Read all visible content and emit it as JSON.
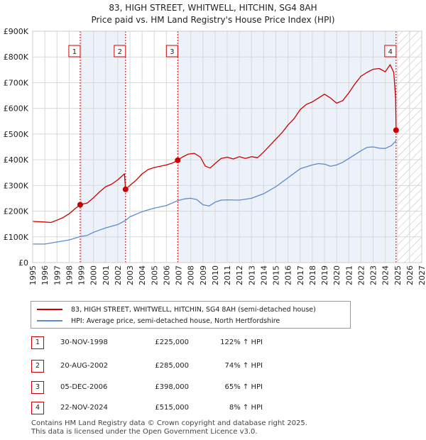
{
  "title_line1": "83, HIGH STREET, WHITWELL, HITCHIN, SG4 8AH",
  "title_line2": "Price paid vs. HM Land Registry's House Price Index (HPI)",
  "chart_data": {
    "type": "line",
    "title": "Price paid vs. HM Land Registry's House Price Index (HPI)",
    "xlabel": "",
    "ylabel": "",
    "xlim": [
      1995,
      2027
    ],
    "ylim": [
      0,
      900000
    ],
    "grid": true,
    "y_ticks": [
      {
        "value": 0,
        "label": "£0"
      },
      {
        "value": 100000,
        "label": "£100K"
      },
      {
        "value": 200000,
        "label": "£200K"
      },
      {
        "value": 300000,
        "label": "£300K"
      },
      {
        "value": 400000,
        "label": "£400K"
      },
      {
        "value": 500000,
        "label": "£500K"
      },
      {
        "value": 600000,
        "label": "£600K"
      },
      {
        "value": 700000,
        "label": "£700K"
      },
      {
        "value": 800000,
        "label": "£800K"
      },
      {
        "value": 900000,
        "label": "£900K"
      }
    ],
    "x_ticks": [
      "1995",
      "1996",
      "1997",
      "1998",
      "1999",
      "2000",
      "2001",
      "2002",
      "2003",
      "2004",
      "2005",
      "2006",
      "2007",
      "2008",
      "2009",
      "2010",
      "2011",
      "2012",
      "2013",
      "2014",
      "2015",
      "2016",
      "2017",
      "2018",
      "2019",
      "2020",
      "2021",
      "2022",
      "2023",
      "2024",
      "2025",
      "2026",
      "2027"
    ],
    "series": [
      {
        "name": "83, HIGH STREET, WHITWELL, HITCHIN, SG4 8AH (semi-detached house)",
        "color": "#cc0000",
        "points": [
          [
            1995.0,
            160000
          ],
          [
            1996.0,
            158000
          ],
          [
            1996.5,
            156000
          ],
          [
            1997.0,
            165000
          ],
          [
            1997.5,
            175000
          ],
          [
            1998.0,
            190000
          ],
          [
            1998.5,
            210000
          ],
          [
            1998.91,
            225000
          ],
          [
            1999.5,
            232000
          ],
          [
            2000.0,
            252000
          ],
          [
            2000.5,
            275000
          ],
          [
            2001.0,
            295000
          ],
          [
            2001.5,
            305000
          ],
          [
            2002.0,
            322000
          ],
          [
            2002.55,
            345000
          ],
          [
            2002.64,
            285000
          ],
          [
            2003.0,
            300000
          ],
          [
            2003.5,
            320000
          ],
          [
            2004.0,
            345000
          ],
          [
            2004.5,
            362000
          ],
          [
            2005.0,
            370000
          ],
          [
            2005.5,
            375000
          ],
          [
            2006.0,
            380000
          ],
          [
            2006.5,
            387000
          ],
          [
            2006.93,
            398000
          ],
          [
            2007.3,
            410000
          ],
          [
            2007.8,
            422000
          ],
          [
            2008.3,
            425000
          ],
          [
            2008.8,
            410000
          ],
          [
            2009.2,
            375000
          ],
          [
            2009.6,
            368000
          ],
          [
            2010.0,
            385000
          ],
          [
            2010.5,
            405000
          ],
          [
            2011.0,
            410000
          ],
          [
            2011.5,
            403000
          ],
          [
            2012.0,
            412000
          ],
          [
            2012.5,
            405000
          ],
          [
            2013.0,
            412000
          ],
          [
            2013.5,
            408000
          ],
          [
            2014.0,
            430000
          ],
          [
            2014.5,
            455000
          ],
          [
            2015.0,
            480000
          ],
          [
            2015.5,
            505000
          ],
          [
            2016.0,
            535000
          ],
          [
            2016.5,
            560000
          ],
          [
            2017.0,
            595000
          ],
          [
            2017.5,
            615000
          ],
          [
            2018.0,
            625000
          ],
          [
            2018.5,
            640000
          ],
          [
            2019.0,
            655000
          ],
          [
            2019.5,
            640000
          ],
          [
            2020.0,
            620000
          ],
          [
            2020.5,
            630000
          ],
          [
            2021.0,
            660000
          ],
          [
            2021.5,
            695000
          ],
          [
            2022.0,
            725000
          ],
          [
            2022.5,
            740000
          ],
          [
            2023.0,
            752000
          ],
          [
            2023.5,
            755000
          ],
          [
            2024.0,
            742000
          ],
          [
            2024.4,
            770000
          ],
          [
            2024.7,
            740000
          ],
          [
            2024.85,
            640000
          ],
          [
            2024.89,
            515000
          ]
        ],
        "markers": [
          [
            1998.91,
            225000
          ],
          [
            2002.64,
            285000
          ],
          [
            2006.93,
            398000
          ],
          [
            2024.89,
            515000
          ]
        ]
      },
      {
        "name": "HPI: Average price, semi-detached house, North Hertfordshire",
        "color": "#5b8ccc",
        "points": [
          [
            1995.0,
            72000
          ],
          [
            1996.0,
            72000
          ],
          [
            1997.0,
            80000
          ],
          [
            1998.0,
            88000
          ],
          [
            1998.91,
            101000
          ],
          [
            1999.5,
            106000
          ],
          [
            2000.0,
            118000
          ],
          [
            2001.0,
            135000
          ],
          [
            2002.0,
            148000
          ],
          [
            2002.64,
            164000
          ],
          [
            2003.0,
            178000
          ],
          [
            2004.0,
            198000
          ],
          [
            2005.0,
            212000
          ],
          [
            2006.0,
            222000
          ],
          [
            2006.93,
            241000
          ],
          [
            2007.5,
            248000
          ],
          [
            2008.0,
            250000
          ],
          [
            2008.5,
            245000
          ],
          [
            2009.0,
            225000
          ],
          [
            2009.5,
            220000
          ],
          [
            2010.0,
            235000
          ],
          [
            2010.5,
            243000
          ],
          [
            2011.0,
            244000
          ],
          [
            2012.0,
            243000
          ],
          [
            2013.0,
            250000
          ],
          [
            2014.0,
            268000
          ],
          [
            2015.0,
            295000
          ],
          [
            2016.0,
            330000
          ],
          [
            2017.0,
            365000
          ],
          [
            2018.0,
            380000
          ],
          [
            2018.5,
            385000
          ],
          [
            2019.0,
            383000
          ],
          [
            2019.5,
            375000
          ],
          [
            2020.0,
            380000
          ],
          [
            2020.5,
            390000
          ],
          [
            2021.0,
            405000
          ],
          [
            2022.0,
            435000
          ],
          [
            2022.5,
            448000
          ],
          [
            2023.0,
            450000
          ],
          [
            2023.5,
            445000
          ],
          [
            2024.0,
            444000
          ],
          [
            2024.5,
            455000
          ],
          [
            2024.89,
            474000
          ]
        ]
      }
    ],
    "annotations": [
      {
        "label": "1",
        "x": 1998.91
      },
      {
        "label": "2",
        "x": 2002.64
      },
      {
        "label": "3",
        "x": 2006.93
      },
      {
        "label": "4",
        "x": 2024.89
      }
    ],
    "shaded_regions": [
      {
        "from": 1998.91,
        "to": 2002.64,
        "style": "shade"
      },
      {
        "from": 2006.93,
        "to": 2024.89,
        "style": "shade"
      },
      {
        "from": 2025.0,
        "to": 2027.0,
        "style": "hatch"
      }
    ]
  },
  "legend": {
    "property_label": "83, HIGH STREET, WHITWELL, HITCHIN, SG4 8AH (semi-detached house)",
    "hpi_label": "HPI: Average price, semi-detached house, North Hertfordshire",
    "property_color": "#cc0000",
    "hpi_color": "#5b8ccc"
  },
  "transactions": [
    {
      "num": "1",
      "date": "30-NOV-1998",
      "price": "£225,000",
      "hpi": "122% ↑ HPI"
    },
    {
      "num": "2",
      "date": "20-AUG-2002",
      "price": "£285,000",
      "hpi": "74% ↑ HPI"
    },
    {
      "num": "3",
      "date": "05-DEC-2006",
      "price": "£398,000",
      "hpi": "65% ↑ HPI"
    },
    {
      "num": "4",
      "date": "22-NOV-2024",
      "price": "£515,000",
      "hpi": "8% ↑ HPI"
    }
  ],
  "footer": {
    "line1": "Contains HM Land Registry data © Crown copyright and database right 2025.",
    "line2": "This data is licensed under the Open Government Licence v3.0."
  }
}
